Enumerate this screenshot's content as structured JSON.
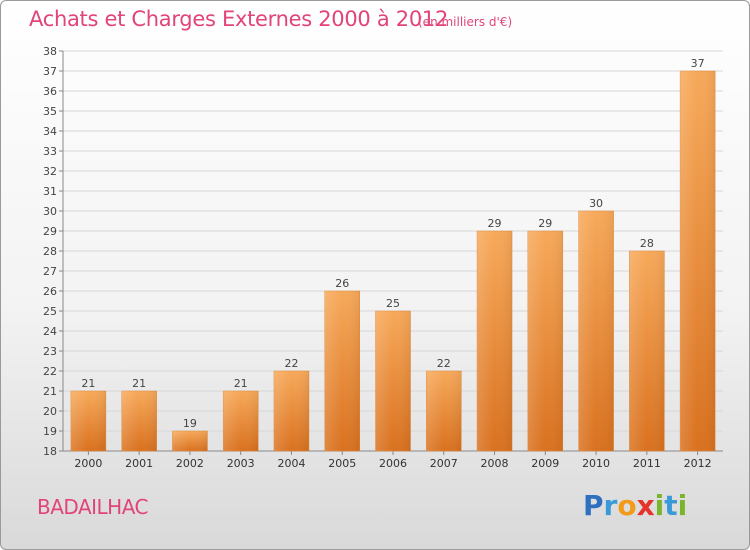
{
  "header": {
    "title": "Achats et Charges Externes 2000 à 2012",
    "subtitle": "(en milliers d'€)"
  },
  "footer": {
    "commune": "BADAILHAC",
    "brand": "Proxiti",
    "brand_letters": [
      {
        "char": "P",
        "color": "#2e6fbf"
      },
      {
        "char": "r",
        "color": "#3a9ad9"
      },
      {
        "char": "o",
        "color": "#f29a1a"
      },
      {
        "char": "x",
        "color": "#e63329"
      },
      {
        "char": "i",
        "color": "#7bb42d"
      },
      {
        "char": "t",
        "color": "#3a9ad9"
      },
      {
        "char": "i",
        "color": "#7bb42d"
      }
    ]
  },
  "colors": {
    "bar_light": "#f7a95a",
    "bar_dark": "#d9711f",
    "accent_text": "#e2447a",
    "grid": "#d6d6d6"
  },
  "chart_data": {
    "type": "bar",
    "title": "Achats et Charges Externes 2000 à 2012",
    "subtitle": "(en milliers d'€)",
    "categories": [
      "2000",
      "2001",
      "2002",
      "2003",
      "2004",
      "2005",
      "2006",
      "2007",
      "2008",
      "2009",
      "2010",
      "2011",
      "2012"
    ],
    "values": [
      21,
      21,
      19,
      21,
      22,
      26,
      25,
      22,
      29,
      29,
      30,
      28,
      37
    ],
    "ylim": [
      18,
      38
    ],
    "yticks": [
      18,
      19,
      20,
      21,
      22,
      23,
      24,
      25,
      26,
      27,
      28,
      29,
      30,
      31,
      32,
      33,
      34,
      35,
      36,
      37,
      38
    ],
    "grid": true,
    "data_labels": true
  }
}
